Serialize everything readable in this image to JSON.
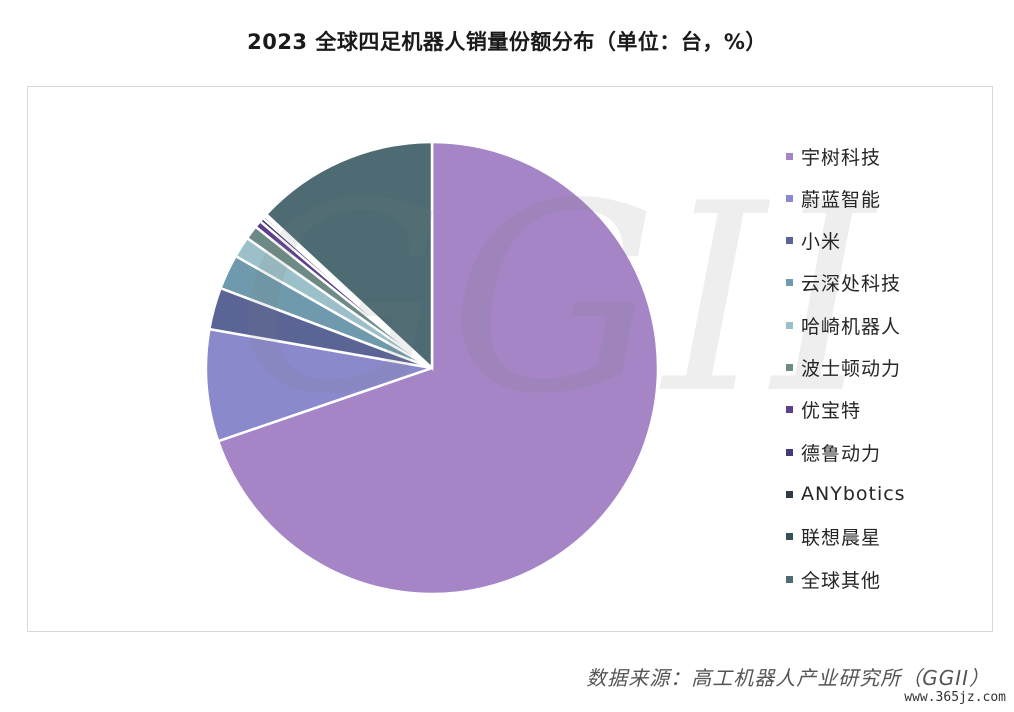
{
  "chart_data": {
    "type": "pie",
    "title": "2023 全球四足机器人销量份额分布（单位：台，%）",
    "slices": [
      {
        "label": "宇树科技",
        "value": 69.75,
        "color": "#a585c5"
      },
      {
        "label": "蔚蓝智能",
        "value": 8.0,
        "color": "#8a89cc"
      },
      {
        "label": "小米",
        "value": 3.0,
        "color": "#5a6596"
      },
      {
        "label": "云深处科技",
        "value": 2.5,
        "color": "#6f9aad"
      },
      {
        "label": "哈崎机器人",
        "value": 1.5,
        "color": "#9cc0c9"
      },
      {
        "label": "波士顿动力",
        "value": 1.0,
        "color": "#6d8a86"
      },
      {
        "label": "优宝特",
        "value": 0.5,
        "color": "#5e3f8a"
      },
      {
        "label": "德鲁动力",
        "value": 0.3,
        "color": "#433a78"
      },
      {
        "label": "ANYbotics",
        "value": 0.2,
        "color": "#2f3a45"
      },
      {
        "label": "联想晨星",
        "value": 0.15,
        "color": "#38505a"
      },
      {
        "label": "全球其他",
        "value": 13.1,
        "color": "#4e6b74"
      }
    ],
    "legend_position": "right",
    "start_angle": "12 o'clock, clockwise"
  },
  "watermark": "GGII",
  "source": "数据来源：高工机器人产业研究所（GGII）",
  "site": "www.365jz.com"
}
